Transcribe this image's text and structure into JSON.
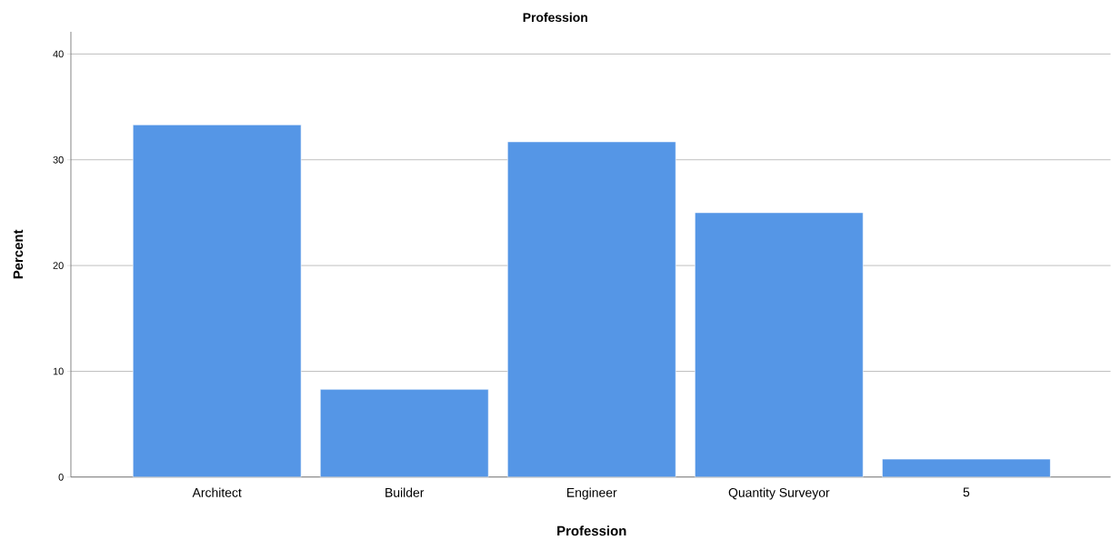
{
  "chart_data": {
    "type": "bar",
    "title": "Profession",
    "xlabel": "Profession",
    "ylabel": "Percent",
    "categories": [
      "Architect",
      "Builder",
      "Engineer",
      "Quantity Surveyor",
      "5"
    ],
    "values": [
      33.3,
      8.3,
      31.7,
      25.0,
      1.7
    ],
    "color": "#5596e6",
    "ylim": [
      0,
      42.1
    ],
    "yticks": [
      0,
      10,
      20,
      30,
      40
    ],
    "grid": "y"
  }
}
